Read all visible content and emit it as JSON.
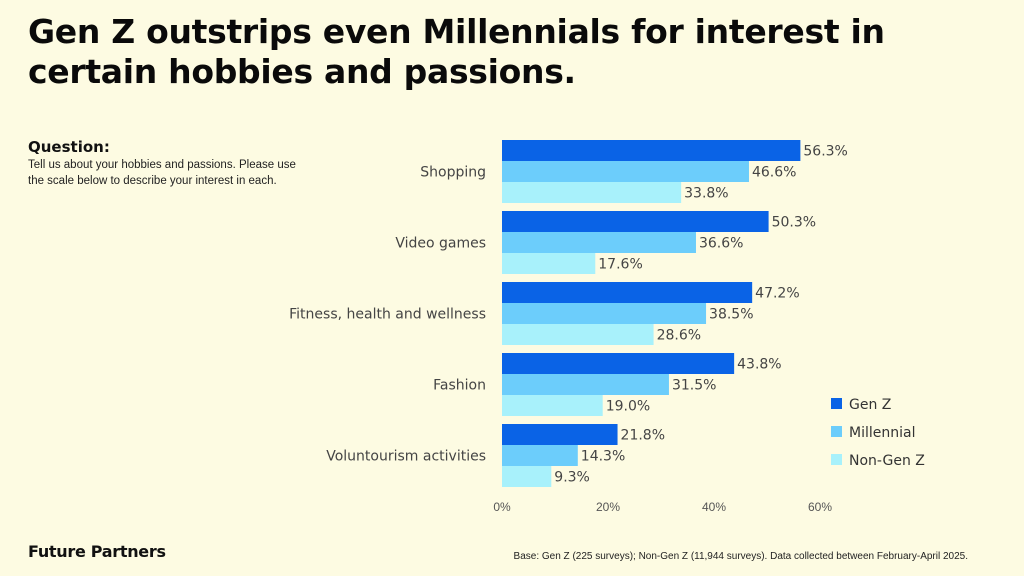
{
  "title": "Gen Z outstrips even Millennials for interest in certain hobbies and passions.",
  "question": {
    "label": "Question:",
    "text": "Tell us about your hobbies and passions. Please use the scale below to describe your interest in each."
  },
  "brand": "Future Partners",
  "footnote": "Base: Gen Z (225 surveys); Non-Gen Z (11,944 surveys). Data collected between February-April 2025.",
  "chart_data": {
    "type": "bar",
    "orientation": "horizontal",
    "categories": [
      "Shopping",
      "Video games",
      "Fitness, health and wellness",
      "Fashion",
      "Voluntourism activities"
    ],
    "series": [
      {
        "name": "Gen Z",
        "color": "#0a63e6",
        "values": [
          56.3,
          50.3,
          47.2,
          43.8,
          21.8
        ],
        "labels": [
          "56.3%",
          "50.3%",
          "47.2%",
          "43.8%",
          "21.8%"
        ]
      },
      {
        "name": "Millennial",
        "color": "#6ccdfb",
        "values": [
          46.6,
          36.6,
          38.5,
          31.5,
          14.3
        ],
        "labels": [
          "46.6%",
          "36.6%",
          "38.5%",
          "31.5%",
          "14.3%"
        ]
      },
      {
        "name": "Non-Gen Z",
        "color": "#a8f1fb",
        "values": [
          33.8,
          17.6,
          28.6,
          19.0,
          9.3
        ],
        "labels": [
          "33.8%",
          "17.6%",
          "28.6%",
          "19.0%",
          "9.3%"
        ]
      }
    ],
    "xlim": [
      0,
      60
    ],
    "xticks": [
      "0%",
      "20%",
      "40%",
      "60%"
    ],
    "grid": false,
    "legend_position": "right"
  }
}
